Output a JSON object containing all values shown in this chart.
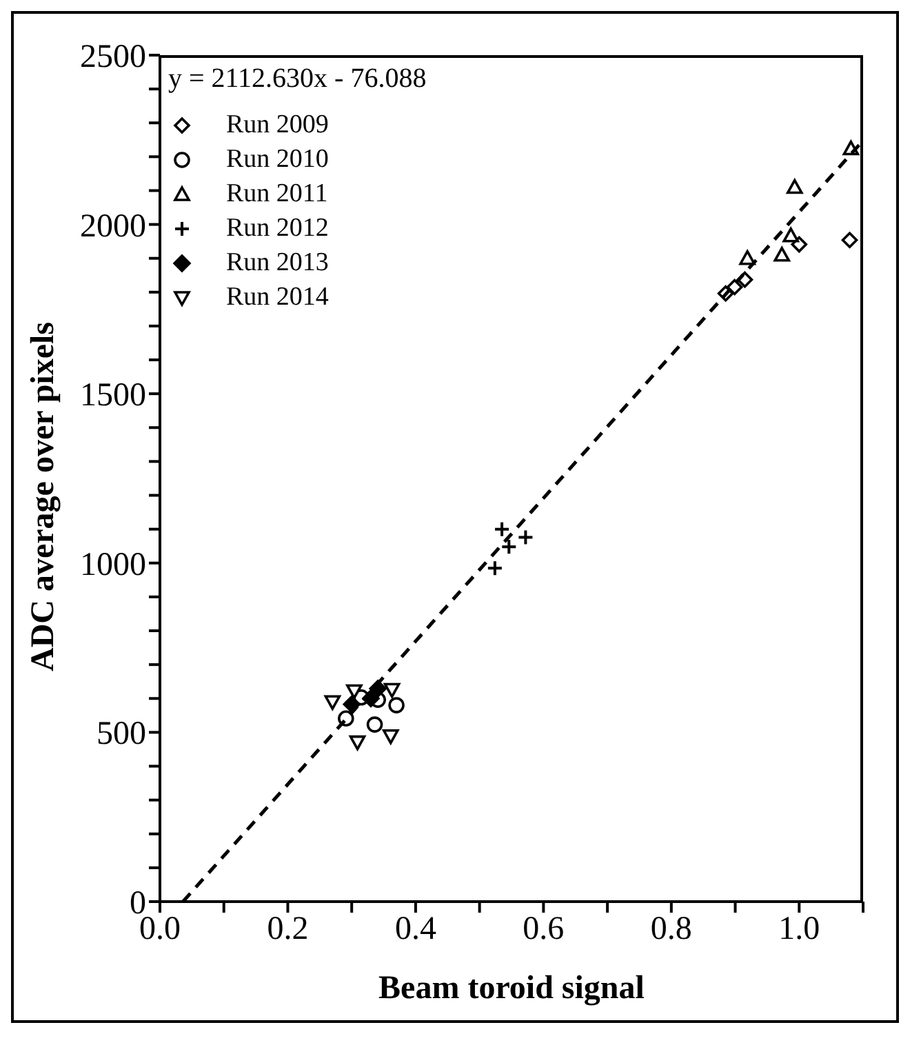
{
  "chart_data": {
    "type": "scatter",
    "xlabel": "Beam toroid signal",
    "ylabel": "ADC average over pixels",
    "annotations": [
      "y = 2112.630x - 76.088"
    ],
    "xlim": [
      0,
      1.1
    ],
    "xticks": [
      {
        "value": 0,
        "label": "0.0"
      },
      {
        "value": 0.1,
        "label": null
      },
      {
        "value": 0.2,
        "label": "0.2"
      },
      {
        "value": 0.3,
        "label": null
      },
      {
        "value": 0.4,
        "label": "0.4"
      },
      {
        "value": 0.5,
        "label": null
      },
      {
        "value": 0.6,
        "label": "0.6"
      },
      {
        "value": 0.7,
        "label": null
      },
      {
        "value": 0.8,
        "label": "0.8"
      },
      {
        "value": 0.9,
        "label": null
      },
      {
        "value": 1,
        "label": "1.0"
      },
      {
        "value": 1.1,
        "label": null
      }
    ],
    "ylim": [
      0,
      2500
    ],
    "yticks": [
      0,
      {
        "value": 100,
        "label": null
      },
      {
        "value": 200,
        "label": null
      },
      {
        "value": 300,
        "label": null
      },
      {
        "value": 400,
        "label": null
      },
      500,
      {
        "value": 600,
        "label": null
      },
      {
        "value": 700,
        "label": null
      },
      {
        "value": 800,
        "label": null
      },
      {
        "value": 900,
        "label": null
      },
      1000,
      {
        "value": 1100,
        "label": null
      },
      {
        "value": 1200,
        "label": null
      },
      {
        "value": 1300,
        "label": null
      },
      {
        "value": 1400,
        "label": null
      },
      1500,
      {
        "value": 1600,
        "label": null
      },
      {
        "value": 1700,
        "label": null
      },
      {
        "value": 1800,
        "label": null
      },
      {
        "value": 1900,
        "label": null
      },
      2000,
      {
        "value": 2100,
        "label": null
      },
      {
        "value": 2200,
        "label": null
      },
      {
        "value": 2300,
        "label": null
      },
      {
        "value": 2400,
        "label": null
      },
      2500
    ],
    "legend": "top left",
    "series": [
      {
        "name": "Run 2009",
        "color": "#000000",
        "marker": "diamond",
        "x": [
          0.885,
          0.899,
          0.915,
          1.0,
          1.079
        ],
        "values": [
          1796,
          1815,
          1837,
          1941,
          1954
        ]
      },
      {
        "name": "Run 2010",
        "color": "#000000",
        "marker": "circle",
        "x": [
          0.315,
          0.341,
          0.37,
          0.291,
          0.336
        ],
        "values": [
          603,
          596,
          580,
          541,
          523
        ]
      },
      {
        "name": "Run 2011",
        "color": "#000000",
        "marker": "triangle",
        "x": [
          0.919,
          0.973,
          0.987,
          0.993,
          1.081
        ],
        "values": [
          1900,
          1910,
          1967,
          2110,
          2224
        ]
      },
      {
        "name": "Run 2012",
        "color": "#000000",
        "marker": "cross",
        "x": [
          0.524,
          0.535,
          0.546,
          0.572
        ],
        "values": [
          985,
          1100,
          1048,
          1076
        ]
      },
      {
        "name": "Run 2013",
        "color": "#000000",
        "marker": "diamond-filled",
        "x": [
          0.3,
          0.33,
          0.341
        ],
        "values": [
          583,
          600,
          629
        ]
      },
      {
        "name": "Run 2014",
        "color": "#000000",
        "marker": "triangle-down",
        "x": [
          0.27,
          0.304,
          0.363,
          0.309,
          0.361
        ],
        "values": [
          590,
          622,
          626,
          471,
          489
        ]
      },
      {
        "type": "line",
        "color": "#000000",
        "line_style": "dashed",
        "marker": "none",
        "x": [
          0.036,
          1.1
        ],
        "values": [
          0,
          2248
        ]
      }
    ]
  }
}
